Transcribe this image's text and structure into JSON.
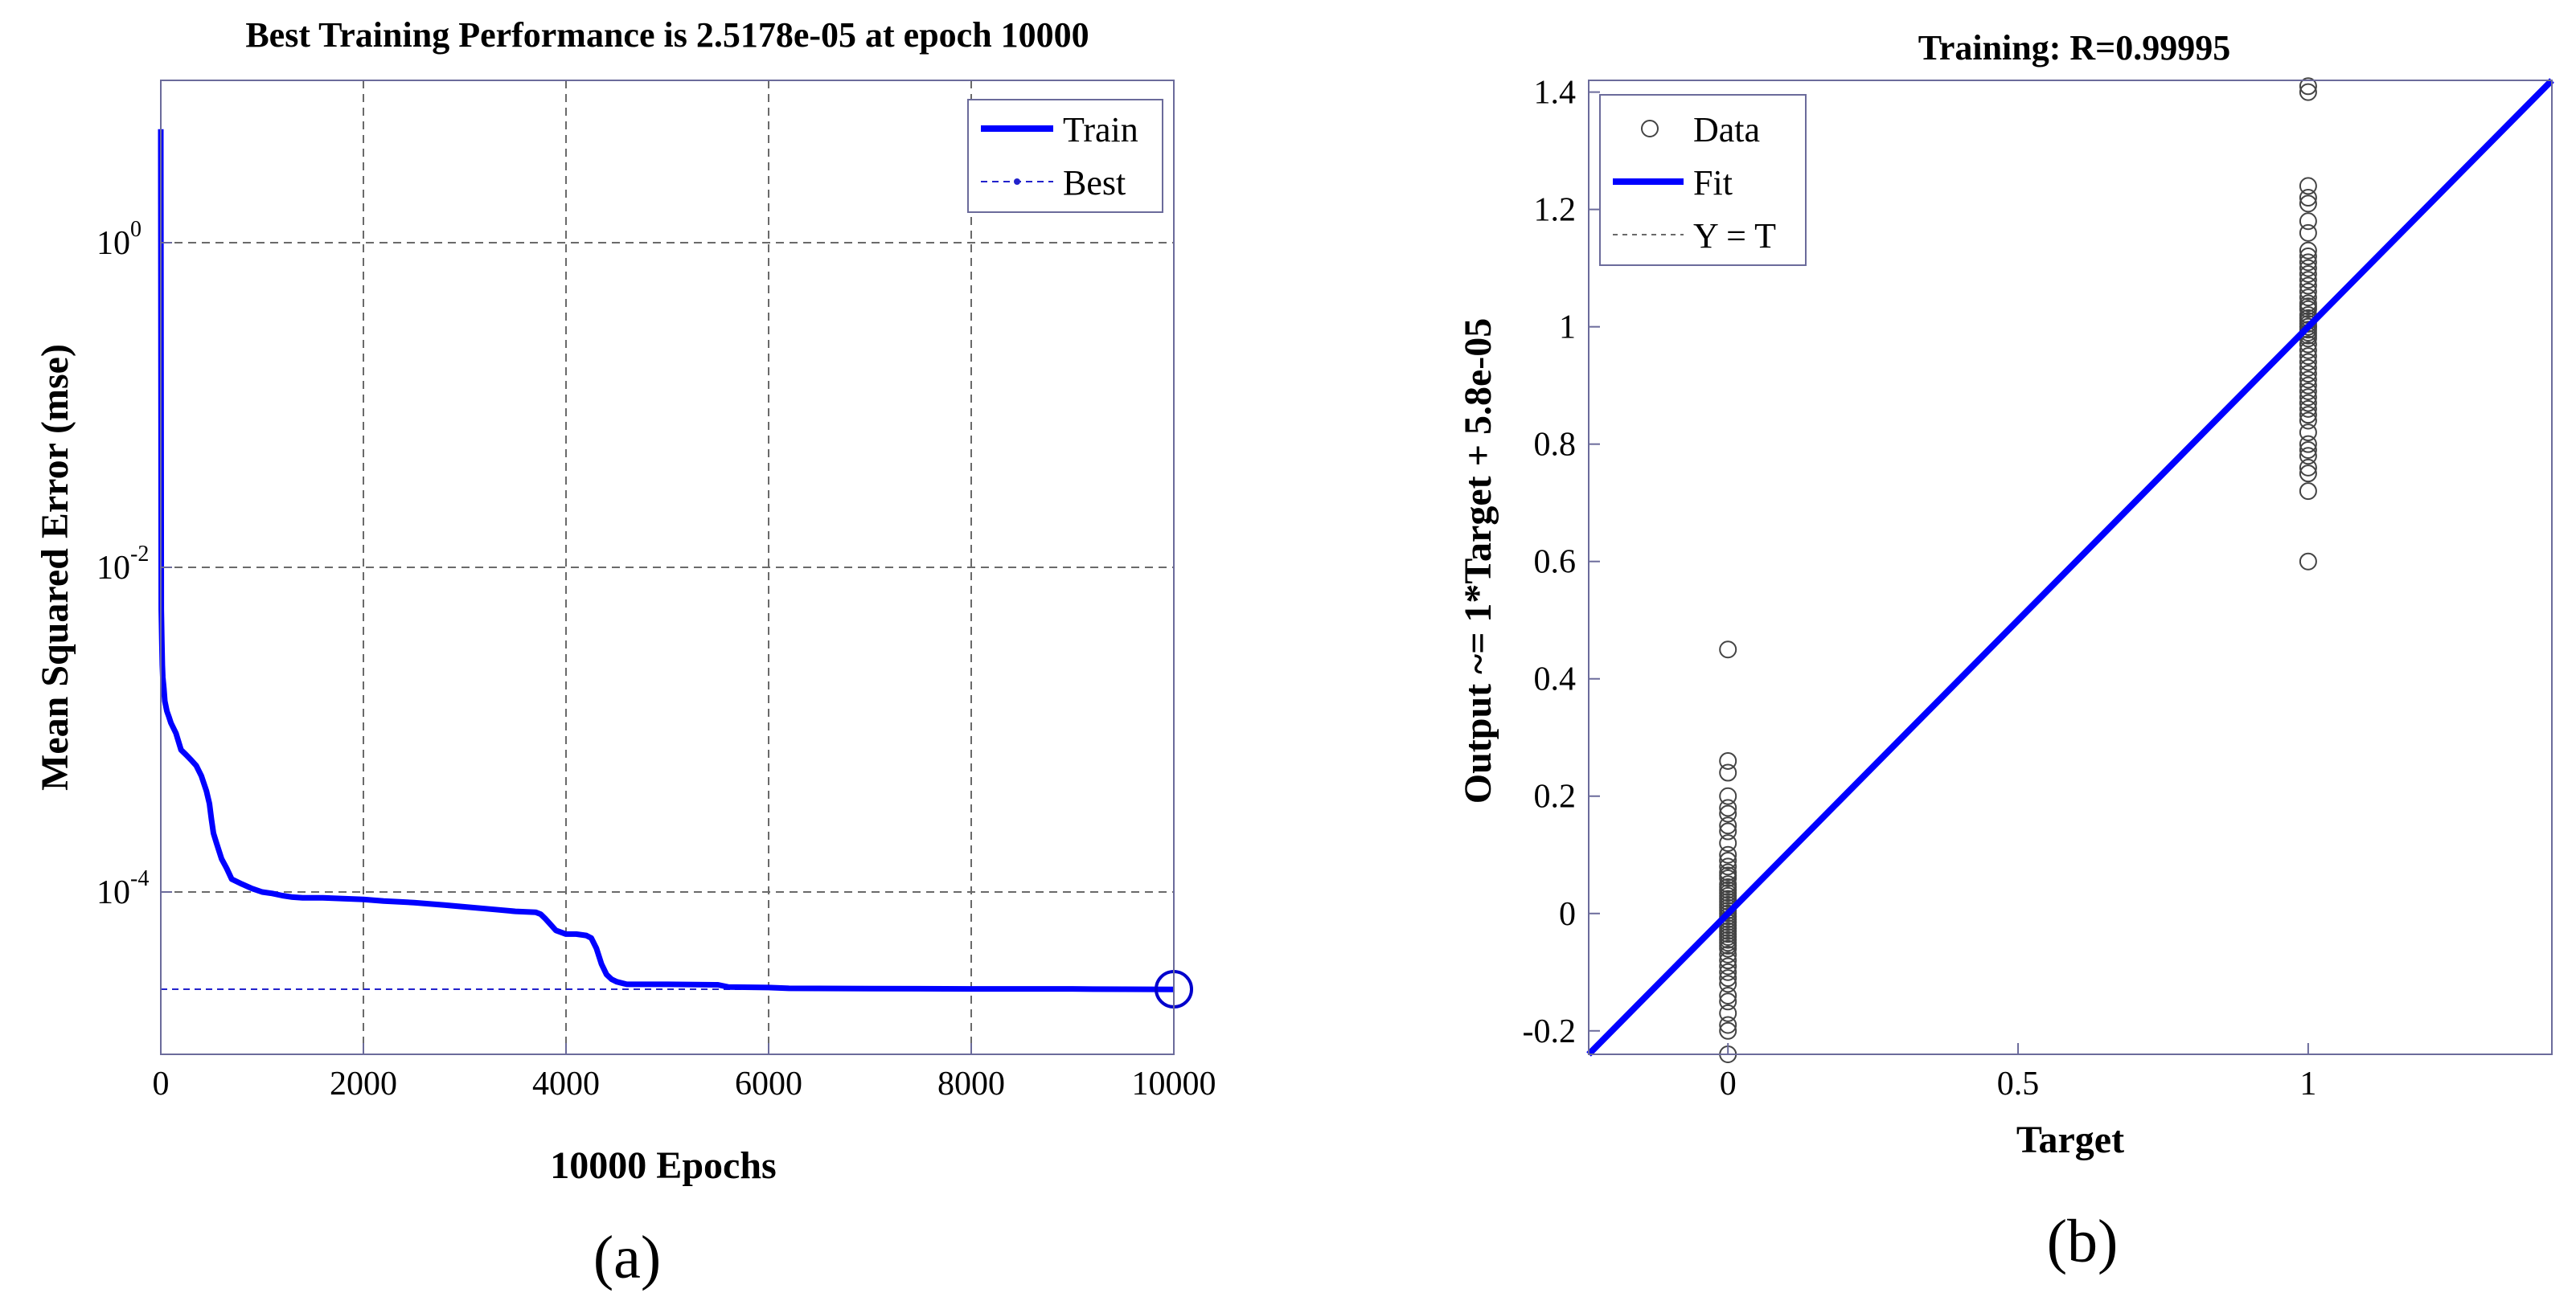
{
  "figure": {
    "captions": [
      "(a)",
      "(b)"
    ]
  },
  "colors": {
    "series": "#0000ff",
    "best_line": "#2222cc",
    "grid": "#6a6a6a",
    "axes": "#6b6b9b",
    "markers": "#444444"
  },
  "chart_data": [
    {
      "type": "line",
      "title": "Best Training Performance is 2.5178e-05 at epoch 10000",
      "xlabel": "10000 Epochs",
      "ylabel": "Mean Squared Error  (mse)",
      "xlim": [
        0,
        10000
      ],
      "ylim": [
        1e-05,
        10
      ],
      "yscale": "log",
      "grid": true,
      "legend_position": "top-right",
      "xticks": [
        0,
        2000,
        4000,
        6000,
        8000,
        10000
      ],
      "xtick_labels": [
        "0",
        "2000",
        "4000",
        "6000",
        "8000",
        "10000"
      ],
      "yticks": [
        {
          "value": 1,
          "base": "10",
          "exp": "0"
        },
        {
          "value": 0.01,
          "base": "10",
          "exp": "-2"
        },
        {
          "value": 0.0001,
          "base": "10",
          "exp": "-4"
        }
      ],
      "series": [
        {
          "name": "Train",
          "x": [
            0,
            0,
            5,
            10,
            15,
            20,
            30,
            40,
            60,
            80,
            100,
            150,
            200,
            250,
            300,
            350,
            400,
            450,
            480,
            500,
            520,
            550,
            600,
            650,
            700,
            800,
            900,
            1000,
            1100,
            1200,
            1300,
            1400,
            1600,
            1800,
            2000,
            2200,
            2500,
            2800,
            3000,
            3300,
            3500,
            3700,
            3750,
            3800,
            3900,
            4000,
            4100,
            4200,
            4250,
            4300,
            4350,
            4400,
            4450,
            4500,
            4550,
            4600,
            5000,
            5500,
            5600,
            6000,
            6200,
            7000,
            8000,
            9000,
            9200,
            10000
          ],
          "y": [
            5,
            4,
            0.0055,
            0.0035,
            0.0025,
            0.0021,
            0.0018,
            0.0015,
            0.0013,
            0.0012,
            0.0011,
            0.00095,
            0.00075,
            0.0007,
            0.00065,
            0.0006,
            0.00052,
            0.00042,
            0.00035,
            0.00028,
            0.00023,
            0.0002,
            0.00016,
            0.00014,
            0.00012,
            0.000112,
            0.000105,
            0.0001,
            9.8e-05,
            9.5e-05,
            9.3e-05,
            9.2e-05,
            9.2e-05,
            9.1e-05,
            9e-05,
            8.8e-05,
            8.6e-05,
            8.3e-05,
            8.1e-05,
            7.8e-05,
            7.6e-05,
            7.5e-05,
            7.3e-05,
            6.8e-05,
            5.8e-05,
            5.5e-05,
            5.5e-05,
            5.4e-05,
            5.2e-05,
            4.5e-05,
            3.6e-05,
            3.1e-05,
            2.9e-05,
            2.8e-05,
            2.75e-05,
            2.7e-05,
            2.7e-05,
            2.68e-05,
            2.6e-05,
            2.58e-05,
            2.55e-05,
            2.54e-05,
            2.53e-05,
            2.53e-05,
            2.52e-05,
            2.51e-05
          ]
        },
        {
          "name": "Best",
          "x": [
            0,
            10000
          ],
          "y": [
            2.5178e-05,
            2.5178e-05
          ]
        }
      ],
      "best_point": {
        "x": 10000,
        "y": 2.5178e-05
      }
    },
    {
      "type": "scatter",
      "title": "Training: R=0.99995",
      "xlabel": "Target",
      "ylabel": "Output ~= 1*Target + 5.8e-05",
      "xlim": [
        -0.24,
        1.42
      ],
      "ylim": [
        -0.24,
        1.42
      ],
      "grid": false,
      "legend_position": "top-left",
      "xticks": [
        0,
        0.5,
        1
      ],
      "xtick_labels": [
        "0",
        "0.5",
        "1"
      ],
      "yticks": [
        -0.2,
        0,
        0.2,
        0.4,
        0.6,
        0.8,
        1,
        1.2,
        1.4
      ],
      "ytick_labels": [
        "-0.2",
        "0",
        "0.2",
        "0.4",
        "0.6",
        "0.8",
        "1",
        "1.2",
        "1.4"
      ],
      "series": [
        {
          "name": "Data",
          "x": [
            0,
            0,
            0,
            0,
            0,
            0,
            0,
            0,
            0,
            0,
            0,
            0,
            0,
            0,
            0,
            0,
            0,
            0,
            0,
            0,
            0,
            0,
            0,
            0,
            0,
            0,
            0,
            0,
            0,
            0,
            0,
            0,
            0,
            0,
            0,
            0,
            0,
            0,
            0,
            0,
            0,
            0,
            0,
            0,
            0,
            0,
            0,
            0,
            0,
            0,
            1,
            1,
            1,
            1,
            1,
            1,
            1,
            1,
            1,
            1,
            1,
            1,
            1,
            1,
            1,
            1,
            1,
            1,
            1,
            1,
            1,
            1,
            1,
            1,
            1,
            1,
            1,
            1,
            1,
            1,
            1,
            1,
            1,
            1,
            1,
            1,
            1,
            1,
            1,
            1,
            1,
            1,
            1,
            1,
            1,
            1,
            1,
            1,
            1,
            1,
            1
          ],
          "y": [
            0.45,
            0.26,
            0.24,
            0.2,
            0.18,
            0.17,
            0.15,
            0.14,
            0.12,
            0.1,
            0.09,
            0.08,
            0.07,
            0.065,
            0.06,
            0.05,
            0.045,
            0.04,
            0.035,
            0.03,
            0.025,
            0.02,
            0.015,
            0.01,
            0.005,
            0,
            -0.005,
            -0.01,
            -0.015,
            -0.02,
            -0.025,
            -0.03,
            -0.035,
            -0.04,
            -0.045,
            -0.05,
            -0.055,
            -0.06,
            -0.07,
            -0.08,
            -0.09,
            -0.1,
            -0.11,
            -0.12,
            -0.14,
            -0.15,
            -0.17,
            -0.19,
            -0.2,
            -0.24,
            1.41,
            1.4,
            1.24,
            1.22,
            1.21,
            1.18,
            1.16,
            1.13,
            1.12,
            1.11,
            1.1,
            1.09,
            1.08,
            1.07,
            1.06,
            1.05,
            1.04,
            1.035,
            1.03,
            1.02,
            1.015,
            1.01,
            1.005,
            1,
            0.995,
            0.99,
            0.985,
            0.98,
            0.97,
            0.96,
            0.95,
            0.94,
            0.93,
            0.92,
            0.91,
            0.9,
            0.89,
            0.88,
            0.87,
            0.86,
            0.85,
            0.84,
            0.82,
            0.8,
            0.79,
            0.78,
            0.76,
            0.75,
            0.72,
            0.6,
            1.0
          ]
        },
        {
          "name": "Fit",
          "x": [
            -0.24,
            1.42
          ],
          "y": [
            -0.24,
            1.42
          ]
        },
        {
          "name": "Y = T",
          "x": [
            -0.24,
            1.42
          ],
          "y": [
            -0.24,
            1.42
          ]
        }
      ]
    }
  ]
}
